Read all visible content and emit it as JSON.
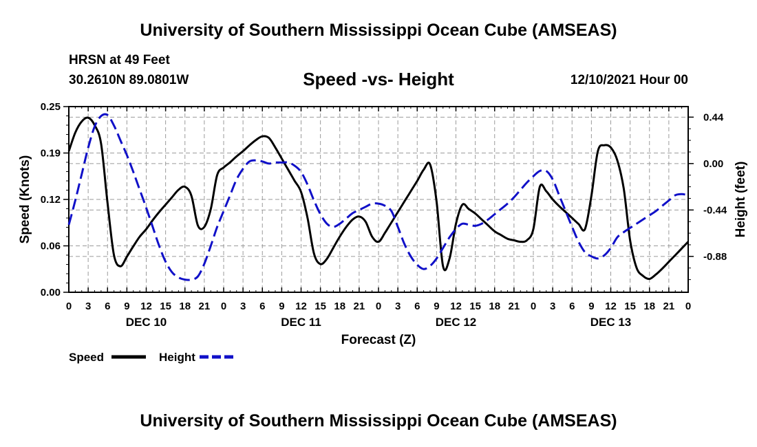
{
  "header": {
    "title": "University of Southern Mississippi Ocean Cube (AMSEAS)",
    "station": "HRSN at 49 Feet",
    "coords": "30.2610N  89.0801W",
    "chart_title": "Speed -vs- Height",
    "date": "12/10/2021 Hour 00"
  },
  "footer": {
    "title": "University of Southern Mississippi Ocean Cube (AMSEAS)"
  },
  "legend": {
    "speed_label": "Speed",
    "height_label": "Height"
  },
  "colors": {
    "speed": "#000000",
    "height": "#1010c8",
    "grid": "#9a9a9a"
  },
  "chart_data": {
    "type": "line",
    "title": "Speed -vs- Height",
    "xlabel": "Forecast (Z)",
    "ylabel_left": "Speed (Knots)",
    "ylabel_right": "Height (feet)",
    "x_range": [
      0,
      96
    ],
    "ylim_left": [
      0,
      0.25
    ],
    "ylim_right": [
      -1.22,
      0.54
    ],
    "left_ticks": [
      "0.00",
      "0.06",
      "0.12",
      "0.19",
      "0.25"
    ],
    "left_tick_values": [
      0,
      0.0625,
      0.125,
      0.1875,
      0.25
    ],
    "right_ticks": [
      "-0.88",
      "-0.44",
      "0.00",
      "0.44"
    ],
    "right_tick_values": [
      -0.88,
      -0.44,
      0.0,
      0.44
    ],
    "x_tick_labels": [
      "0",
      "3",
      "6",
      "9",
      "12",
      "15",
      "18",
      "21",
      "0",
      "3",
      "6",
      "9",
      "12",
      "15",
      "18",
      "21",
      "0",
      "3",
      "6",
      "9",
      "12",
      "15",
      "18",
      "21",
      "0",
      "3",
      "6",
      "9",
      "12",
      "15",
      "18",
      "21",
      "0"
    ],
    "day_labels": [
      "DEC 10",
      "DEC 11",
      "DEC 12",
      "DEC 13"
    ],
    "day_label_hours": [
      12,
      36,
      60,
      84
    ],
    "grid": true,
    "series": [
      {
        "name": "Speed",
        "axis": "left",
        "style": "solid",
        "x": [
          0,
          1,
          2,
          3,
          4,
          5,
          6,
          7,
          8,
          9,
          10,
          11,
          12,
          13,
          14,
          15,
          16,
          17,
          18,
          19,
          20,
          21,
          22,
          23,
          24,
          25,
          26,
          27,
          28,
          29,
          30,
          31,
          32,
          33,
          34,
          35,
          36,
          37,
          38,
          39,
          40,
          41,
          42,
          43,
          44,
          45,
          46,
          47,
          48,
          49,
          50,
          51,
          52,
          53,
          54,
          55,
          56,
          57,
          58,
          59,
          60,
          61,
          62,
          63,
          64,
          65,
          66,
          67,
          68,
          69,
          70,
          71,
          72,
          73,
          74,
          75,
          76,
          77,
          78,
          79,
          80,
          81,
          82,
          83,
          84,
          85,
          86,
          87,
          88,
          89,
          90,
          91,
          92,
          93,
          94,
          95,
          96
        ],
        "values": [
          0.19,
          0.215,
          0.23,
          0.235,
          0.225,
          0.2,
          0.12,
          0.05,
          0.035,
          0.048,
          0.062,
          0.075,
          0.085,
          0.097,
          0.108,
          0.118,
          0.128,
          0.138,
          0.142,
          0.13,
          0.09,
          0.088,
          0.112,
          0.158,
          0.168,
          0.175,
          0.183,
          0.19,
          0.198,
          0.205,
          0.21,
          0.208,
          0.195,
          0.18,
          0.165,
          0.15,
          0.135,
          0.1,
          0.052,
          0.038,
          0.045,
          0.06,
          0.075,
          0.088,
          0.098,
          0.102,
          0.095,
          0.075,
          0.068,
          0.08,
          0.094,
          0.108,
          0.122,
          0.136,
          0.15,
          0.165,
          0.172,
          0.122,
          0.035,
          0.045,
          0.092,
          0.118,
          0.112,
          0.106,
          0.098,
          0.09,
          0.082,
          0.077,
          0.072,
          0.07,
          0.068,
          0.07,
          0.085,
          0.142,
          0.136,
          0.125,
          0.116,
          0.108,
          0.1,
          0.092,
          0.085,
          0.13,
          0.19,
          0.198,
          0.195,
          0.178,
          0.14,
          0.07,
          0.033,
          0.022,
          0.018,
          0.024,
          0.032,
          0.041,
          0.05,
          0.059,
          0.068
        ]
      },
      {
        "name": "Height",
        "axis": "right",
        "style": "dashed",
        "x": [
          0,
          1,
          2,
          3,
          4,
          5,
          6,
          7,
          8,
          9,
          10,
          11,
          12,
          13,
          14,
          15,
          16,
          17,
          18,
          19,
          20,
          21,
          22,
          23,
          24,
          25,
          26,
          27,
          28,
          29,
          30,
          31,
          32,
          33,
          34,
          35,
          36,
          37,
          38,
          39,
          40,
          41,
          42,
          43,
          44,
          45,
          46,
          47,
          48,
          49,
          50,
          51,
          52,
          53,
          54,
          55,
          56,
          57,
          58,
          59,
          60,
          61,
          62,
          63,
          64,
          65,
          66,
          67,
          68,
          69,
          70,
          71,
          72,
          73,
          74,
          75,
          76,
          77,
          78,
          79,
          80,
          81,
          82,
          83,
          84,
          85,
          86,
          87,
          88,
          89,
          90,
          91,
          92,
          93,
          94,
          95,
          96
        ],
        "values": [
          -0.58,
          -0.35,
          -0.1,
          0.15,
          0.35,
          0.45,
          0.46,
          0.36,
          0.22,
          0.08,
          -0.08,
          -0.25,
          -0.42,
          -0.6,
          -0.78,
          -0.93,
          -1.03,
          -1.08,
          -1.1,
          -1.1,
          -1.07,
          -0.95,
          -0.78,
          -0.6,
          -0.45,
          -0.3,
          -0.15,
          -0.05,
          0.02,
          0.03,
          0.02,
          0.0,
          0.01,
          0.01,
          0.01,
          -0.02,
          -0.08,
          -0.2,
          -0.35,
          -0.48,
          -0.57,
          -0.6,
          -0.57,
          -0.52,
          -0.47,
          -0.44,
          -0.41,
          -0.38,
          -0.38,
          -0.4,
          -0.45,
          -0.6,
          -0.76,
          -0.88,
          -0.96,
          -1.0,
          -0.97,
          -0.9,
          -0.8,
          -0.7,
          -0.62,
          -0.57,
          -0.58,
          -0.59,
          -0.57,
          -0.53,
          -0.48,
          -0.43,
          -0.38,
          -0.32,
          -0.25,
          -0.18,
          -0.12,
          -0.07,
          -0.07,
          -0.15,
          -0.3,
          -0.45,
          -0.6,
          -0.74,
          -0.84,
          -0.88,
          -0.9,
          -0.87,
          -0.8,
          -0.7,
          -0.65,
          -0.61,
          -0.57,
          -0.53,
          -0.49,
          -0.45,
          -0.4,
          -0.35,
          -0.3,
          -0.29,
          -0.3
        ]
      }
    ]
  }
}
